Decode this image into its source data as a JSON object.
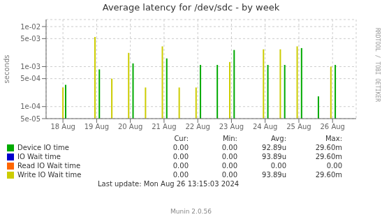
{
  "chart_data": {
    "type": "bar",
    "title": "Average latency for /dev/sdc - by week",
    "y_label": "seconds",
    "log": "y",
    "grid": true,
    "legend": "bottom",
    "xlim": [
      -0.5,
      8.7
    ],
    "xticks": [
      {
        "value": 0,
        "label": "18 Aug"
      },
      {
        "value": 1,
        "label": "19 Aug"
      },
      {
        "value": 2,
        "label": "20 Aug"
      },
      {
        "value": 3,
        "label": "21 Aug"
      },
      {
        "value": 4,
        "label": "22 Aug"
      },
      {
        "value": 5,
        "label": "23 Aug"
      },
      {
        "value": 6,
        "label": "24 Aug"
      },
      {
        "value": 7,
        "label": "25 Aug"
      },
      {
        "value": 8,
        "label": "26 Aug"
      }
    ],
    "ylim": [
      5e-05,
      0.015
    ],
    "yticks": [
      {
        "value": 5e-05,
        "label": "5e-05"
      },
      {
        "value": 0.0001,
        "label": "1e-04"
      },
      {
        "value": 0.0005,
        "label": "5e-04"
      },
      {
        "value": 0.001,
        "label": "1e-03"
      },
      {
        "value": 0.005,
        "label": "5e-03"
      },
      {
        "value": 0.01,
        "label": "1e-02"
      }
    ],
    "stat_headers": [
      "Cur:",
      "Min:",
      "Avg:",
      "Max:"
    ],
    "series": [
      {
        "name": "Device IO time",
        "color": "#00aa00",
        "x": [
          0.08,
          1.08,
          2.08,
          3.08,
          4.08,
          4.58,
          5.08,
          6.08,
          6.58,
          7.08,
          7.58,
          8.08
        ],
        "values": [
          0.00035,
          0.00085,
          0.0012,
          0.0016,
          0.0011,
          0.0011,
          0.0026,
          0.0011,
          0.0011,
          0.0029,
          0.00018,
          0.0011
        ],
        "stats": [
          "0.00",
          "0.00",
          "92.89u",
          "29.60m"
        ]
      },
      {
        "name": "IO Wait time",
        "color": "#0000cc",
        "x": [],
        "values": [],
        "stats": [
          "0.00",
          "0.00",
          "93.89u",
          "29.60m"
        ]
      },
      {
        "name": "Read IO Wait time",
        "color": "#ff6600",
        "x": [],
        "values": [],
        "stats": [
          "0.00",
          "0.00",
          "0.00",
          "0.00"
        ]
      },
      {
        "name": "Write IO Wait time",
        "color": "#cccc00",
        "x": [
          0.0,
          0.95,
          1.45,
          1.95,
          2.45,
          2.95,
          3.45,
          3.95,
          4.95,
          5.95,
          6.45,
          6.95,
          7.95
        ],
        "values": [
          0.0003,
          0.0055,
          0.0005,
          0.0022,
          0.0003,
          0.0032,
          0.0003,
          0.0003,
          0.0013,
          0.0027,
          0.0027,
          0.0032,
          0.001
        ],
        "stats": [
          "0.00",
          "0.00",
          "93.89u",
          "29.60m"
        ]
      }
    ],
    "annotations": [
      "RRDTOOL / TOBI OETIKER",
      "Last update: Mon Aug 26 13:15:03 2024",
      "Munin 2.0.56"
    ]
  }
}
